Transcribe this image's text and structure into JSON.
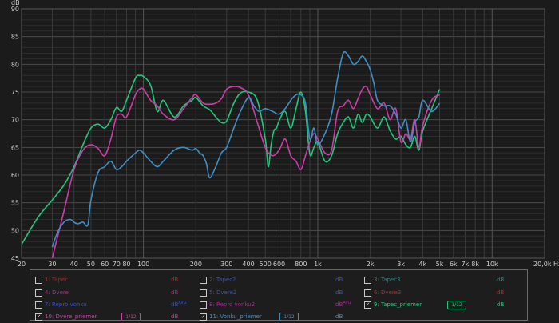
{
  "chart_data": {
    "type": "line",
    "xscale": "log",
    "xlim": [
      20,
      20000
    ],
    "ylim": [
      45,
      90
    ],
    "y_unit_label": "dB",
    "x_unit_label": "Hz",
    "grid": true,
    "y_ticks": [
      45,
      50,
      55,
      60,
      65,
      70,
      75,
      80,
      85,
      90
    ],
    "x_ticks": [
      {
        "v": 20,
        "label": "20"
      },
      {
        "v": 30,
        "label": "30"
      },
      {
        "v": 40,
        "label": "40"
      },
      {
        "v": 50,
        "label": "50"
      },
      {
        "v": 60,
        "label": "60"
      },
      {
        "v": 70,
        "label": "70"
      },
      {
        "v": 80,
        "label": "80"
      },
      {
        "v": 100,
        "label": "100"
      },
      {
        "v": 200,
        "label": "200"
      },
      {
        "v": 300,
        "label": "300"
      },
      {
        "v": 400,
        "label": "400"
      },
      {
        "v": 500,
        "label": "500"
      },
      {
        "v": 600,
        "label": "600"
      },
      {
        "v": 800,
        "label": "800"
      },
      {
        "v": 1000,
        "label": "1k"
      },
      {
        "v": 2000,
        "label": "2k"
      },
      {
        "v": 3000,
        "label": "3k"
      },
      {
        "v": 4000,
        "label": "4k"
      },
      {
        "v": 5000,
        "label": "5k"
      },
      {
        "v": 6000,
        "label": "6k"
      },
      {
        "v": 7000,
        "label": "7k"
      },
      {
        "v": 8000,
        "label": "8k"
      },
      {
        "v": 10000,
        "label": "10k"
      },
      {
        "v": 20000,
        "label": "20,0k"
      }
    ],
    "series": [
      {
        "name": "9: Tapec_priemer",
        "color": "#1fc77a",
        "x": [
          20,
          25,
          30,
          35,
          40,
          45,
          50,
          55,
          60,
          65,
          70,
          75,
          80,
          90,
          95,
          100,
          110,
          120,
          130,
          150,
          170,
          190,
          200,
          220,
          240,
          260,
          280,
          300,
          330,
          360,
          400,
          450,
          500,
          520,
          540,
          560,
          580,
          600,
          650,
          700,
          750,
          800,
          850,
          900,
          950,
          1000,
          1100,
          1200,
          1300,
          1400,
          1500,
          1600,
          1700,
          1800,
          1900,
          2000,
          2200,
          2400,
          2600,
          2800,
          3000,
          3200,
          3400,
          3600,
          3800,
          4000,
          4500,
          5000
        ],
        "values": [
          47.5,
          52.5,
          55.5,
          58.2,
          61.5,
          65.5,
          68.5,
          69.2,
          68.5,
          70.0,
          72.2,
          71.5,
          73.5,
          77.5,
          78.0,
          77.8,
          76.2,
          71.5,
          73.5,
          70.5,
          72.5,
          73.5,
          74.0,
          72.5,
          71.8,
          70.5,
          69.5,
          69.8,
          73.0,
          74.8,
          75.0,
          73.5,
          66.5,
          61.5,
          65.5,
          68.0,
          68.5,
          69.8,
          71.5,
          68.5,
          72.0,
          75.0,
          71.5,
          63.8,
          65.0,
          66.0,
          62.5,
          63.5,
          67.5,
          69.5,
          70.5,
          68.5,
          71.0,
          69.5,
          71.0,
          70.5,
          68.5,
          70.5,
          68.0,
          66.5,
          67.0,
          65.5,
          65.0,
          67.0,
          64.5,
          68.0,
          72.0,
          75.5
        ]
      },
      {
        "name": "10: Dvere_priemer",
        "color": "#cf3ca8",
        "x": [
          30,
          35,
          40,
          45,
          50,
          55,
          60,
          65,
          70,
          75,
          80,
          90,
          95,
          100,
          110,
          120,
          130,
          150,
          170,
          190,
          200,
          220,
          240,
          260,
          280,
          300,
          330,
          360,
          400,
          450,
          500,
          550,
          600,
          650,
          700,
          750,
          800,
          850,
          900,
          950,
          1000,
          1100,
          1200,
          1300,
          1400,
          1500,
          1600,
          1700,
          1800,
          1900,
          2000,
          2200,
          2400,
          2600,
          2800,
          3000,
          3200,
          3400,
          3600,
          3800,
          4000,
          4500,
          5000
        ],
        "values": [
          45.0,
          53.5,
          61.0,
          64.5,
          65.5,
          64.8,
          63.5,
          66.5,
          70.5,
          71.0,
          70.5,
          74.5,
          75.5,
          75.5,
          73.5,
          72.5,
          71.0,
          70.0,
          72.0,
          74.0,
          74.5,
          73.0,
          72.8,
          73.0,
          73.8,
          75.5,
          76.0,
          75.8,
          74.5,
          69.5,
          65.0,
          63.5,
          64.5,
          66.5,
          63.5,
          62.5,
          61.0,
          63.5,
          66.0,
          67.5,
          66.5,
          64.0,
          64.5,
          71.5,
          72.5,
          73.5,
          72.0,
          73.8,
          75.5,
          76.0,
          74.5,
          72.0,
          73.0,
          70.0,
          72.0,
          66.0,
          67.5,
          66.5,
          70.0,
          65.0,
          69.0,
          73.5,
          74.5
        ]
      },
      {
        "name": "11: Vonku_priemer",
        "color": "#3f8fc4",
        "x": [
          30,
          32,
          35,
          38,
          40,
          42,
          45,
          48,
          50,
          55,
          60,
          65,
          70,
          75,
          80,
          90,
          95,
          100,
          110,
          120,
          130,
          150,
          170,
          190,
          200,
          210,
          220,
          230,
          240,
          260,
          280,
          300,
          330,
          360,
          400,
          430,
          460,
          500,
          550,
          600,
          650,
          700,
          750,
          800,
          850,
          900,
          950,
          1000,
          1100,
          1200,
          1300,
          1400,
          1500,
          1600,
          1700,
          1800,
          1900,
          2000,
          2100,
          2200,
          2400,
          2600,
          2800,
          3000,
          3200,
          3400,
          3600,
          3800,
          4000,
          4500,
          5000
        ],
        "values": [
          47.0,
          49.5,
          51.5,
          52.0,
          51.5,
          51.2,
          51.5,
          51.0,
          55.5,
          60.5,
          61.5,
          62.5,
          61.0,
          61.5,
          62.5,
          64.0,
          64.5,
          64.0,
          62.5,
          61.5,
          62.5,
          64.5,
          65.0,
          64.5,
          64.8,
          64.0,
          63.5,
          62.0,
          59.5,
          61.5,
          64.0,
          65.0,
          68.5,
          71.5,
          74.0,
          72.5,
          71.5,
          72.0,
          71.5,
          71.0,
          72.0,
          73.5,
          74.5,
          74.5,
          73.0,
          66.5,
          68.5,
          65.5,
          67.5,
          71.0,
          77.5,
          82.0,
          81.5,
          80.0,
          80.5,
          81.5,
          80.5,
          79.0,
          76.5,
          73.5,
          72.5,
          72.5,
          71.0,
          68.5,
          70.0,
          66.0,
          69.5,
          70.5,
          73.5,
          71.5,
          73.0
        ]
      }
    ]
  },
  "legend": [
    {
      "label": "1: Tapec",
      "unit": "dB",
      "avg": false,
      "checked": false,
      "smoothing": "",
      "color": "#c42424"
    },
    {
      "label": "2: Tapec2",
      "unit": "dB",
      "avg": false,
      "checked": false,
      "smoothing": "",
      "color": "#3b4fc8"
    },
    {
      "label": "3: Tapec3",
      "unit": "dB",
      "avg": false,
      "checked": false,
      "smoothing": "",
      "color": "#1d8a88"
    },
    {
      "label": "4: Dvere",
      "unit": "dB",
      "avg": false,
      "checked": false,
      "smoothing": "",
      "color": "#c01f87"
    },
    {
      "label": "5: Dvere2",
      "unit": "dB",
      "avg": false,
      "checked": false,
      "smoothing": "",
      "color": "#3b4fc8"
    },
    {
      "label": "6: Dvere3",
      "unit": "dB",
      "avg": false,
      "checked": false,
      "smoothing": "",
      "color": "#c42424"
    },
    {
      "label": "7: Repro vonku",
      "unit": "dB",
      "avg": true,
      "checked": false,
      "smoothing": "",
      "color": "#3b4fc8"
    },
    {
      "label": "8: Repro vonku2",
      "unit": "dB",
      "avg": true,
      "checked": false,
      "smoothing": "",
      "color": "#b021a0"
    },
    {
      "label": "9: Tapec_priemer",
      "unit": "dB",
      "avg": false,
      "checked": true,
      "smoothing": "1/12",
      "color": "#1fc77a"
    },
    {
      "label": "10: Dvere_priemer",
      "unit": "dB",
      "avg": false,
      "checked": true,
      "smoothing": "1/12",
      "color": "#cf3ca8"
    },
    {
      "label": "11: Vonku_priemer",
      "unit": "dB",
      "avg": false,
      "checked": true,
      "smoothing": "1/12",
      "color": "#3f8fc4"
    }
  ],
  "legend_avg_label": "AVG",
  "check_mark": "✓"
}
